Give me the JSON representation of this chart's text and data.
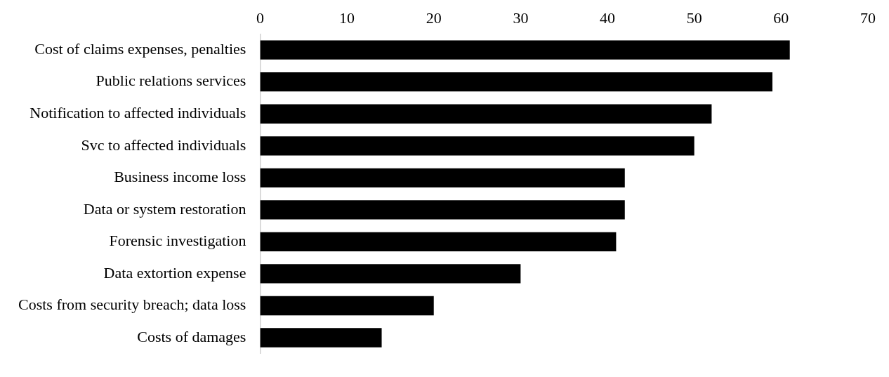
{
  "chart_data": {
    "type": "bar",
    "orientation": "horizontal",
    "categories": [
      "Cost of claims expenses, penalties",
      "Public relations services",
      "Notification to affected individuals",
      "Svc to affected individuals",
      "Business income loss",
      "Data or system restoration",
      "Forensic investigation",
      "Data extortion expense",
      "Costs from security breach; data loss",
      "Costs of damages"
    ],
    "values": [
      61,
      59,
      52,
      50,
      42,
      42,
      41,
      30,
      20,
      14
    ],
    "color": "#000000",
    "xlim": [
      0,
      70
    ],
    "xticks": [
      0,
      10,
      20,
      30,
      40,
      50,
      60,
      70
    ],
    "grid": false,
    "legend": false
  }
}
